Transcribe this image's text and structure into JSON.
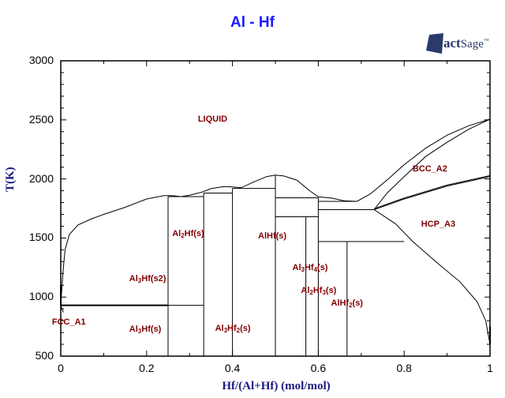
{
  "chart_data": {
    "type": "phase_diagram",
    "title": "Al - Hf",
    "xlabel": "Hf/(Al+Hf) (mol/mol)",
    "ylabel": "T(K)",
    "xlim": [
      0,
      1
    ],
    "ylim": [
      500,
      3000
    ],
    "xticks": [
      "0",
      "0.2",
      "0.4",
      "0.6",
      "0.8",
      "1"
    ],
    "yticks": [
      "3000",
      "2500",
      "2000",
      "1500",
      "1000",
      "500"
    ],
    "grid": false,
    "phase_labels": [
      {
        "text": "LIQUID",
        "x": 0.36,
        "T": 2500
      },
      {
        "text": "BCC_A2",
        "x": 0.86,
        "T": 2080
      },
      {
        "text": "HCP_A3",
        "x": 0.88,
        "T": 1610
      },
      {
        "text": "FCC_A1",
        "x": 0.02,
        "T": 780
      },
      {
        "text": "Al3Hf(s2)",
        "x": 0.2,
        "T": 1150
      },
      {
        "text": "Al3Hf(s)",
        "x": 0.2,
        "T": 720
      },
      {
        "text": "Al2Hf(s)",
        "x": 0.3,
        "T": 1530
      },
      {
        "text": "AlHf(s)",
        "x": 0.5,
        "T": 1510
      },
      {
        "text": "Al3Hf4(s)",
        "x": 0.58,
        "T": 1240
      },
      {
        "text": "Al2Hf3(s)",
        "x": 0.6,
        "T": 1050
      },
      {
        "text": "AlHf2(s)",
        "x": 0.67,
        "T": 940
      },
      {
        "text": "Al3Hf2(s)",
        "x": 0.4,
        "T": 730
      }
    ],
    "compounds": [
      {
        "name": "Al3Hf",
        "x": 0.25,
        "T_max": 1850
      },
      {
        "name": "Al2Hf",
        "x": 0.333,
        "T_max": 1880
      },
      {
        "name": "Al3Hf2",
        "x": 0.4,
        "T_max": 1920
      },
      {
        "name": "AlHf",
        "x": 0.5,
        "T_max": 2030
      },
      {
        "name": "Al3Hf4",
        "x": 0.571,
        "T_max": 1680
      },
      {
        "name": "Al2Hf3",
        "x": 0.6,
        "T_max": 1840
      },
      {
        "name": "AlHf2",
        "x": 0.667,
        "T_max": 1470
      }
    ],
    "horizontal_lines": [
      {
        "x_from": 0.0,
        "x_to": 0.25,
        "T": 930
      },
      {
        "x_from": 0.25,
        "x_to": 0.333,
        "T": 930
      },
      {
        "x_from": 0.25,
        "x_to": 0.333,
        "T": 1850
      },
      {
        "x_from": 0.333,
        "x_to": 0.4,
        "T": 1880
      },
      {
        "x_from": 0.4,
        "x_to": 0.5,
        "T": 1920
      },
      {
        "x_from": 0.5,
        "x_to": 0.6,
        "T": 1840
      },
      {
        "x_from": 0.5,
        "x_to": 0.6,
        "T": 1680
      },
      {
        "x_from": 0.6,
        "x_to": 0.69,
        "T": 1810
      },
      {
        "x_from": 0.6,
        "x_to": 0.73,
        "T": 1740
      },
      {
        "x_from": 0.6,
        "x_to": 0.8,
        "T": 1470
      }
    ],
    "liquidus": [
      [
        0.0,
        933
      ],
      [
        0.005,
        1200
      ],
      [
        0.01,
        1400
      ],
      [
        0.02,
        1530
      ],
      [
        0.04,
        1610
      ],
      [
        0.07,
        1660
      ],
      [
        0.1,
        1700
      ],
      [
        0.15,
        1760
      ],
      [
        0.2,
        1830
      ],
      [
        0.24,
        1858
      ],
      [
        0.26,
        1858
      ],
      [
        0.28,
        1850
      ],
      [
        0.3,
        1862
      ],
      [
        0.33,
        1890
      ],
      [
        0.35,
        1918
      ],
      [
        0.38,
        1935
      ],
      [
        0.4,
        1932
      ],
      [
        0.42,
        1925
      ],
      [
        0.45,
        1975
      ],
      [
        0.48,
        2020
      ],
      [
        0.5,
        2032
      ],
      [
        0.52,
        2025
      ],
      [
        0.55,
        1990
      ],
      [
        0.58,
        1900
      ],
      [
        0.6,
        1848
      ],
      [
        0.63,
        1838
      ],
      [
        0.66,
        1815
      ],
      [
        0.69,
        1810
      ],
      [
        0.72,
        1870
      ],
      [
        0.76,
        1990
      ],
      [
        0.8,
        2120
      ],
      [
        0.85,
        2260
      ],
      [
        0.9,
        2370
      ],
      [
        0.95,
        2450
      ],
      [
        1.0,
        2506
      ]
    ],
    "solidus_bcc": [
      [
        0.73,
        1740
      ],
      [
        0.76,
        1880
      ],
      [
        0.8,
        2020
      ],
      [
        0.85,
        2190
      ],
      [
        0.9,
        2310
      ],
      [
        0.95,
        2420
      ],
      [
        1.0,
        2506
      ]
    ],
    "bcc_hcp_boundary": [
      [
        0.73,
        1740
      ],
      [
        0.8,
        1830
      ],
      [
        0.9,
        1940
      ],
      [
        1.0,
        2020
      ]
    ],
    "hcp_solvus": [
      [
        0.73,
        1740
      ],
      [
        0.78,
        1620
      ],
      [
        0.82,
        1470
      ],
      [
        0.88,
        1280
      ],
      [
        0.93,
        1130
      ],
      [
        0.97,
        960
      ],
      [
        0.99,
        800
      ],
      [
        1.0,
        600
      ]
    ]
  },
  "header": {
    "title": "Al - Hf",
    "logo": "FactSage"
  },
  "axes": {
    "xlabel": "Hf/(Al+Hf) (mol/mol)",
    "ylabel": "T(K)"
  }
}
